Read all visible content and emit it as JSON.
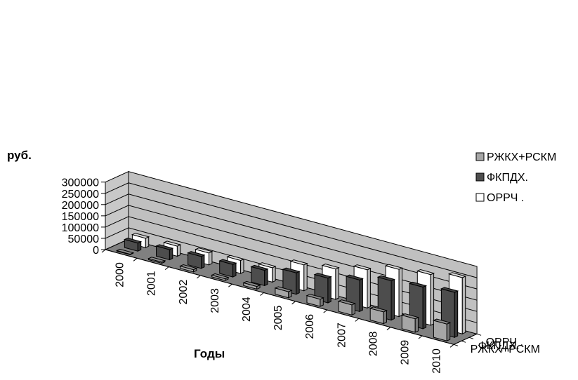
{
  "chart_data": {
    "type": "bar",
    "ylabel": "руб.",
    "xlabel": "Годы",
    "ylim": [
      0,
      300000
    ],
    "yticks": [
      0,
      50000,
      100000,
      150000,
      200000,
      250000,
      300000
    ],
    "categories": [
      "2000",
      "2001",
      "2002",
      "2003",
      "2004",
      "2005",
      "2006",
      "2007",
      "2008",
      "2009",
      "2010"
    ],
    "series": [
      {
        "name": "РЖКХ+РСКМ",
        "color": "#a6a6a6",
        "values": [
          2000,
          5000,
          10000,
          8000,
          12000,
          27000,
          32000,
          45000,
          52000,
          60000,
          75000
        ]
      },
      {
        "name": "ФКПДХ.",
        "color": "#4d4d4d",
        "values": [
          36000,
          45000,
          53000,
          56000,
          68000,
          95000,
          110000,
          140000,
          175000,
          185000,
          200000
        ]
      },
      {
        "name": "ОРРЧ .",
        "color": "#ffffff",
        "values": [
          42000,
          45000,
          53000,
          58000,
          64000,
          115000,
          135000,
          170000,
          210000,
          225000,
          250000
        ]
      }
    ],
    "legend_position": "right",
    "grid": true
  }
}
